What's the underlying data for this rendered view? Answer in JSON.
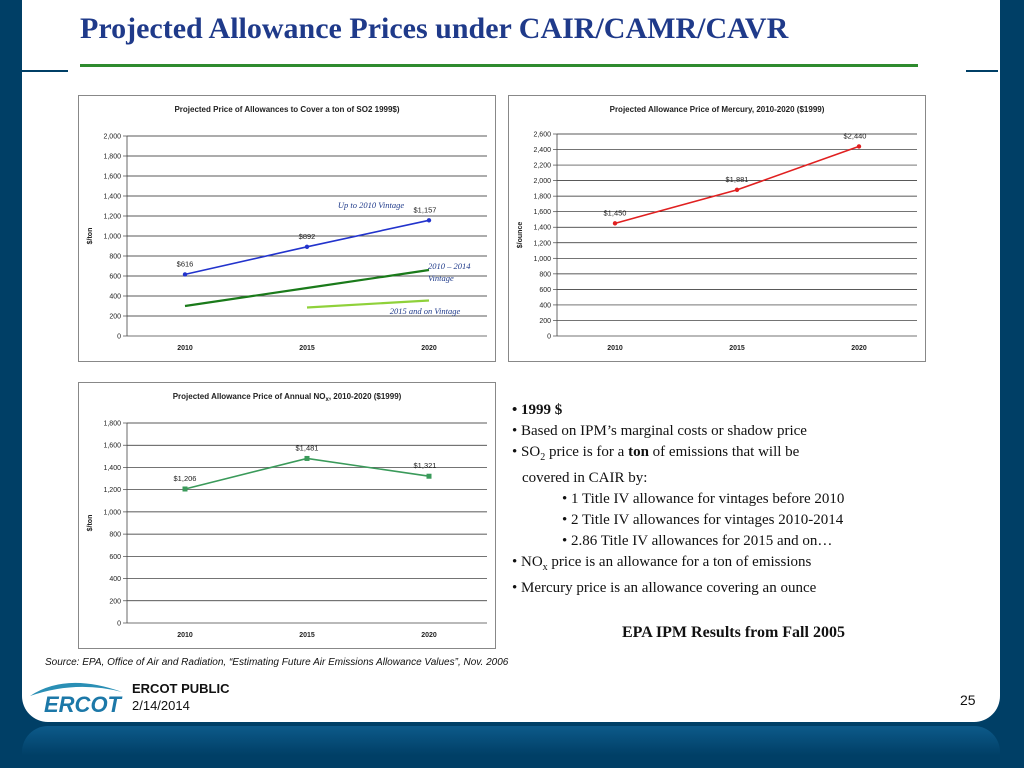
{
  "title": "Projected Allowance Prices under CAIR/CAMR/CAVR",
  "chart_data": [
    {
      "type": "line",
      "title": "Projected Price of Allowances to Cover a ton of SO2  1999$)",
      "ylabel": "$/ton",
      "xlabel": "",
      "categories": [
        "2010",
        "2015",
        "2020"
      ],
      "ylim": [
        0,
        2000
      ],
      "yticks": [
        "0",
        "200",
        "400",
        "600",
        "800",
        "1,000",
        "1,200",
        "1,400",
        "1,600",
        "1,800",
        "2,000"
      ],
      "grid": true,
      "series": [
        {
          "name": "Up to 2010 Vintage",
          "values": [
            616,
            892,
            1157
          ],
          "color": "#2233cc",
          "labels": [
            "$616",
            "$892",
            "$1,157"
          ],
          "markers": true
        },
        {
          "name": "2010 – 2014 Vintage",
          "values": [
            300,
            480,
            660
          ],
          "color": "#1a7a1a",
          "markers": false
        },
        {
          "name": "2015 and on Vintage",
          "values": [
            null,
            285,
            355
          ],
          "color": "#8fd13a",
          "markers": false
        }
      ],
      "annotations": [
        "Up to 2010 Vintage",
        "2010 – 2014",
        "Vintage",
        "2015 and on Vintage"
      ]
    },
    {
      "type": "line",
      "title": "Projected Allowance Price of Mercury, 2010-2020 ($1999)",
      "ylabel": "$/ounce",
      "xlabel": "",
      "categories": [
        "2010",
        "2015",
        "2020"
      ],
      "ylim": [
        0,
        2600
      ],
      "yticks": [
        "0",
        "200",
        "400",
        "600",
        "800",
        "1,000",
        "1,200",
        "1,400",
        "1,600",
        "1,800",
        "2,000",
        "2,200",
        "2,400",
        "2,600"
      ],
      "grid": true,
      "series": [
        {
          "values": [
            1450,
            1881,
            2440
          ],
          "color": "#e02020",
          "labels": [
            "$1,450",
            "$1,881",
            "$2,440"
          ],
          "markers": true
        }
      ]
    },
    {
      "type": "line",
      "title_main": "Projected Allowance Price of Annual NO",
      "title_sub": "x",
      "title_rest": ", 2010-2020 ($1999)",
      "ylabel": "$/ton",
      "xlabel": "",
      "categories": [
        "2010",
        "2015",
        "2020"
      ],
      "ylim": [
        0,
        1800
      ],
      "yticks": [
        "0",
        "200",
        "400",
        "600",
        "800",
        "1,000",
        "1,200",
        "1,400",
        "1,600",
        "1,800"
      ],
      "grid": true,
      "series": [
        {
          "values": [
            1206,
            1481,
            1321
          ],
          "color": "#3a9a5a",
          "labels": [
            "$1,206",
            "$1,481",
            "$1,321"
          ],
          "markers": true
        }
      ]
    }
  ],
  "bullets": {
    "b1": "• 1999 $",
    "b2": "•  Based on IPM’s marginal costs or shadow price",
    "b3_pre": "• SO",
    "b3_sub": "2",
    "b3_mid": " price is for a ",
    "b3_bold": "ton",
    "b3_post": " of emissions that will be",
    "b4": "covered in CAIR by:",
    "b5": "• 1 Title IV allowance for vintages before 2010",
    "b6": "• 2 Title IV allowances for vintages 2010-2014",
    "b7": "• 2.86 Title IV allowances for 2015 and on…",
    "b8_pre": "•  NO",
    "b8_sub": "x",
    "b8_post": " price is an allowance for a ton of emissions",
    "b9": "•  Mercury price is an allowance covering an ounce"
  },
  "epa_results": "EPA IPM Results from Fall 2005",
  "source": "Source: EPA, Office of Air and Radiation, “Estimating Future Air Emissions Allowance Values”, Nov. 2006",
  "footer": {
    "logo_text": "ERCOT",
    "label": "ERCOT PUBLIC",
    "date": "2/14/2014",
    "page": "25"
  },
  "colors": {
    "background": "#003f66",
    "title": "#1f3a8a",
    "rule": "#2e8b2e"
  }
}
